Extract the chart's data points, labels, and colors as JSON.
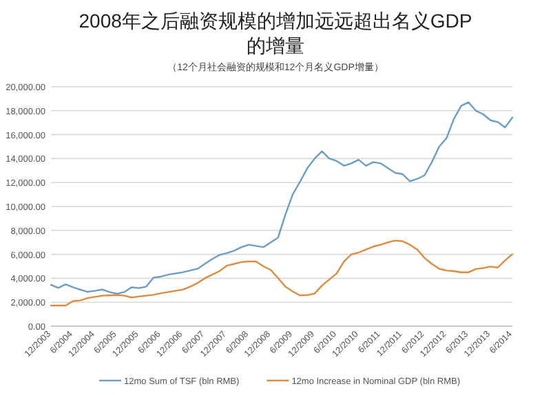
{
  "chart_data": {
    "type": "line",
    "title": "2008年之后融资规模的增加远远超出名义GDP的增量",
    "subtitle": "（12个月社会融资的规模和12个月名义GDP增量）",
    "categories": [
      "12/2003",
      null,
      null,
      "6/2004",
      null,
      null,
      "12/2004",
      null,
      null,
      "6/2005",
      null,
      null,
      "12/2005",
      null,
      null,
      "6/2006",
      null,
      null,
      "12/2006",
      null,
      null,
      "6/2007",
      null,
      null,
      "12/2007",
      null,
      null,
      "6/2008",
      null,
      null,
      "12/2008",
      null,
      null,
      "6/2009",
      null,
      null,
      "12/2009",
      null,
      null,
      "6/2010",
      null,
      null,
      "12/2010",
      null,
      null,
      "6/2011",
      null,
      null,
      "12/2011",
      null,
      null,
      "6/2012",
      null,
      null,
      "12/2012",
      null,
      null,
      "6/2013",
      null,
      null,
      "12/2013",
      null,
      null,
      "6/2014"
    ],
    "series": [
      {
        "name": "12mo Sum of TSF (bln RMB)",
        "color": "#6a9ec8",
        "values": [
          3450,
          3200,
          3500,
          3250,
          3050,
          2870,
          2950,
          3060,
          2850,
          2700,
          2850,
          3250,
          3180,
          3300,
          4050,
          4140,
          4300,
          4400,
          4500,
          4650,
          4790,
          5200,
          5600,
          5950,
          6100,
          6300,
          6600,
          6800,
          6700,
          6600,
          7000,
          7400,
          9300,
          11000,
          12060,
          13200,
          14000,
          14600,
          14000,
          13800,
          13400,
          13600,
          13900,
          13400,
          13700,
          13600,
          13200,
          12800,
          12700,
          12100,
          12300,
          12600,
          13700,
          15000,
          15700,
          17300,
          18400,
          18700,
          18000,
          17700,
          17200,
          17050,
          16600,
          17430
        ]
      },
      {
        "name": "12mo Increase in Nominal GDP (bln RMB)",
        "color": "#e08a3c",
        "values": [
          1720,
          1720,
          1720,
          2100,
          2150,
          2350,
          2450,
          2550,
          2570,
          2600,
          2550,
          2400,
          2480,
          2550,
          2620,
          2750,
          2850,
          2950,
          3050,
          3300,
          3600,
          4000,
          4300,
          4600,
          5050,
          5200,
          5350,
          5400,
          5400,
          5000,
          4700,
          4020,
          3300,
          2900,
          2570,
          2600,
          2720,
          3400,
          3900,
          4400,
          5400,
          6000,
          6150,
          6400,
          6650,
          6800,
          7000,
          7150,
          7100,
          6800,
          6400,
          5700,
          5200,
          4800,
          4650,
          4600,
          4500,
          4500,
          4780,
          4850,
          4980,
          4900,
          5500,
          6010
        ]
      }
    ],
    "ylim": [
      0,
      20000
    ],
    "yticks": [
      {
        "value": 0,
        "label": "0.00"
      },
      {
        "value": 2000,
        "label": "2,000.00"
      },
      {
        "value": 4000,
        "label": "4,000.00"
      },
      {
        "value": 6000,
        "label": "6,000.00"
      },
      {
        "value": 8000,
        "label": "8,000.00"
      },
      {
        "value": 10000,
        "label": "10,000.00"
      },
      {
        "value": 12000,
        "label": "12,000.00"
      },
      {
        "value": 14000,
        "label": "14,000.00"
      },
      {
        "value": 16000,
        "label": "16,000.00"
      },
      {
        "value": 18000,
        "label": "18,000.00"
      },
      {
        "value": 20000,
        "label": "20,000.00"
      }
    ],
    "grid": "y",
    "legend": "bottom",
    "marker": "none",
    "line_style": "solid"
  }
}
